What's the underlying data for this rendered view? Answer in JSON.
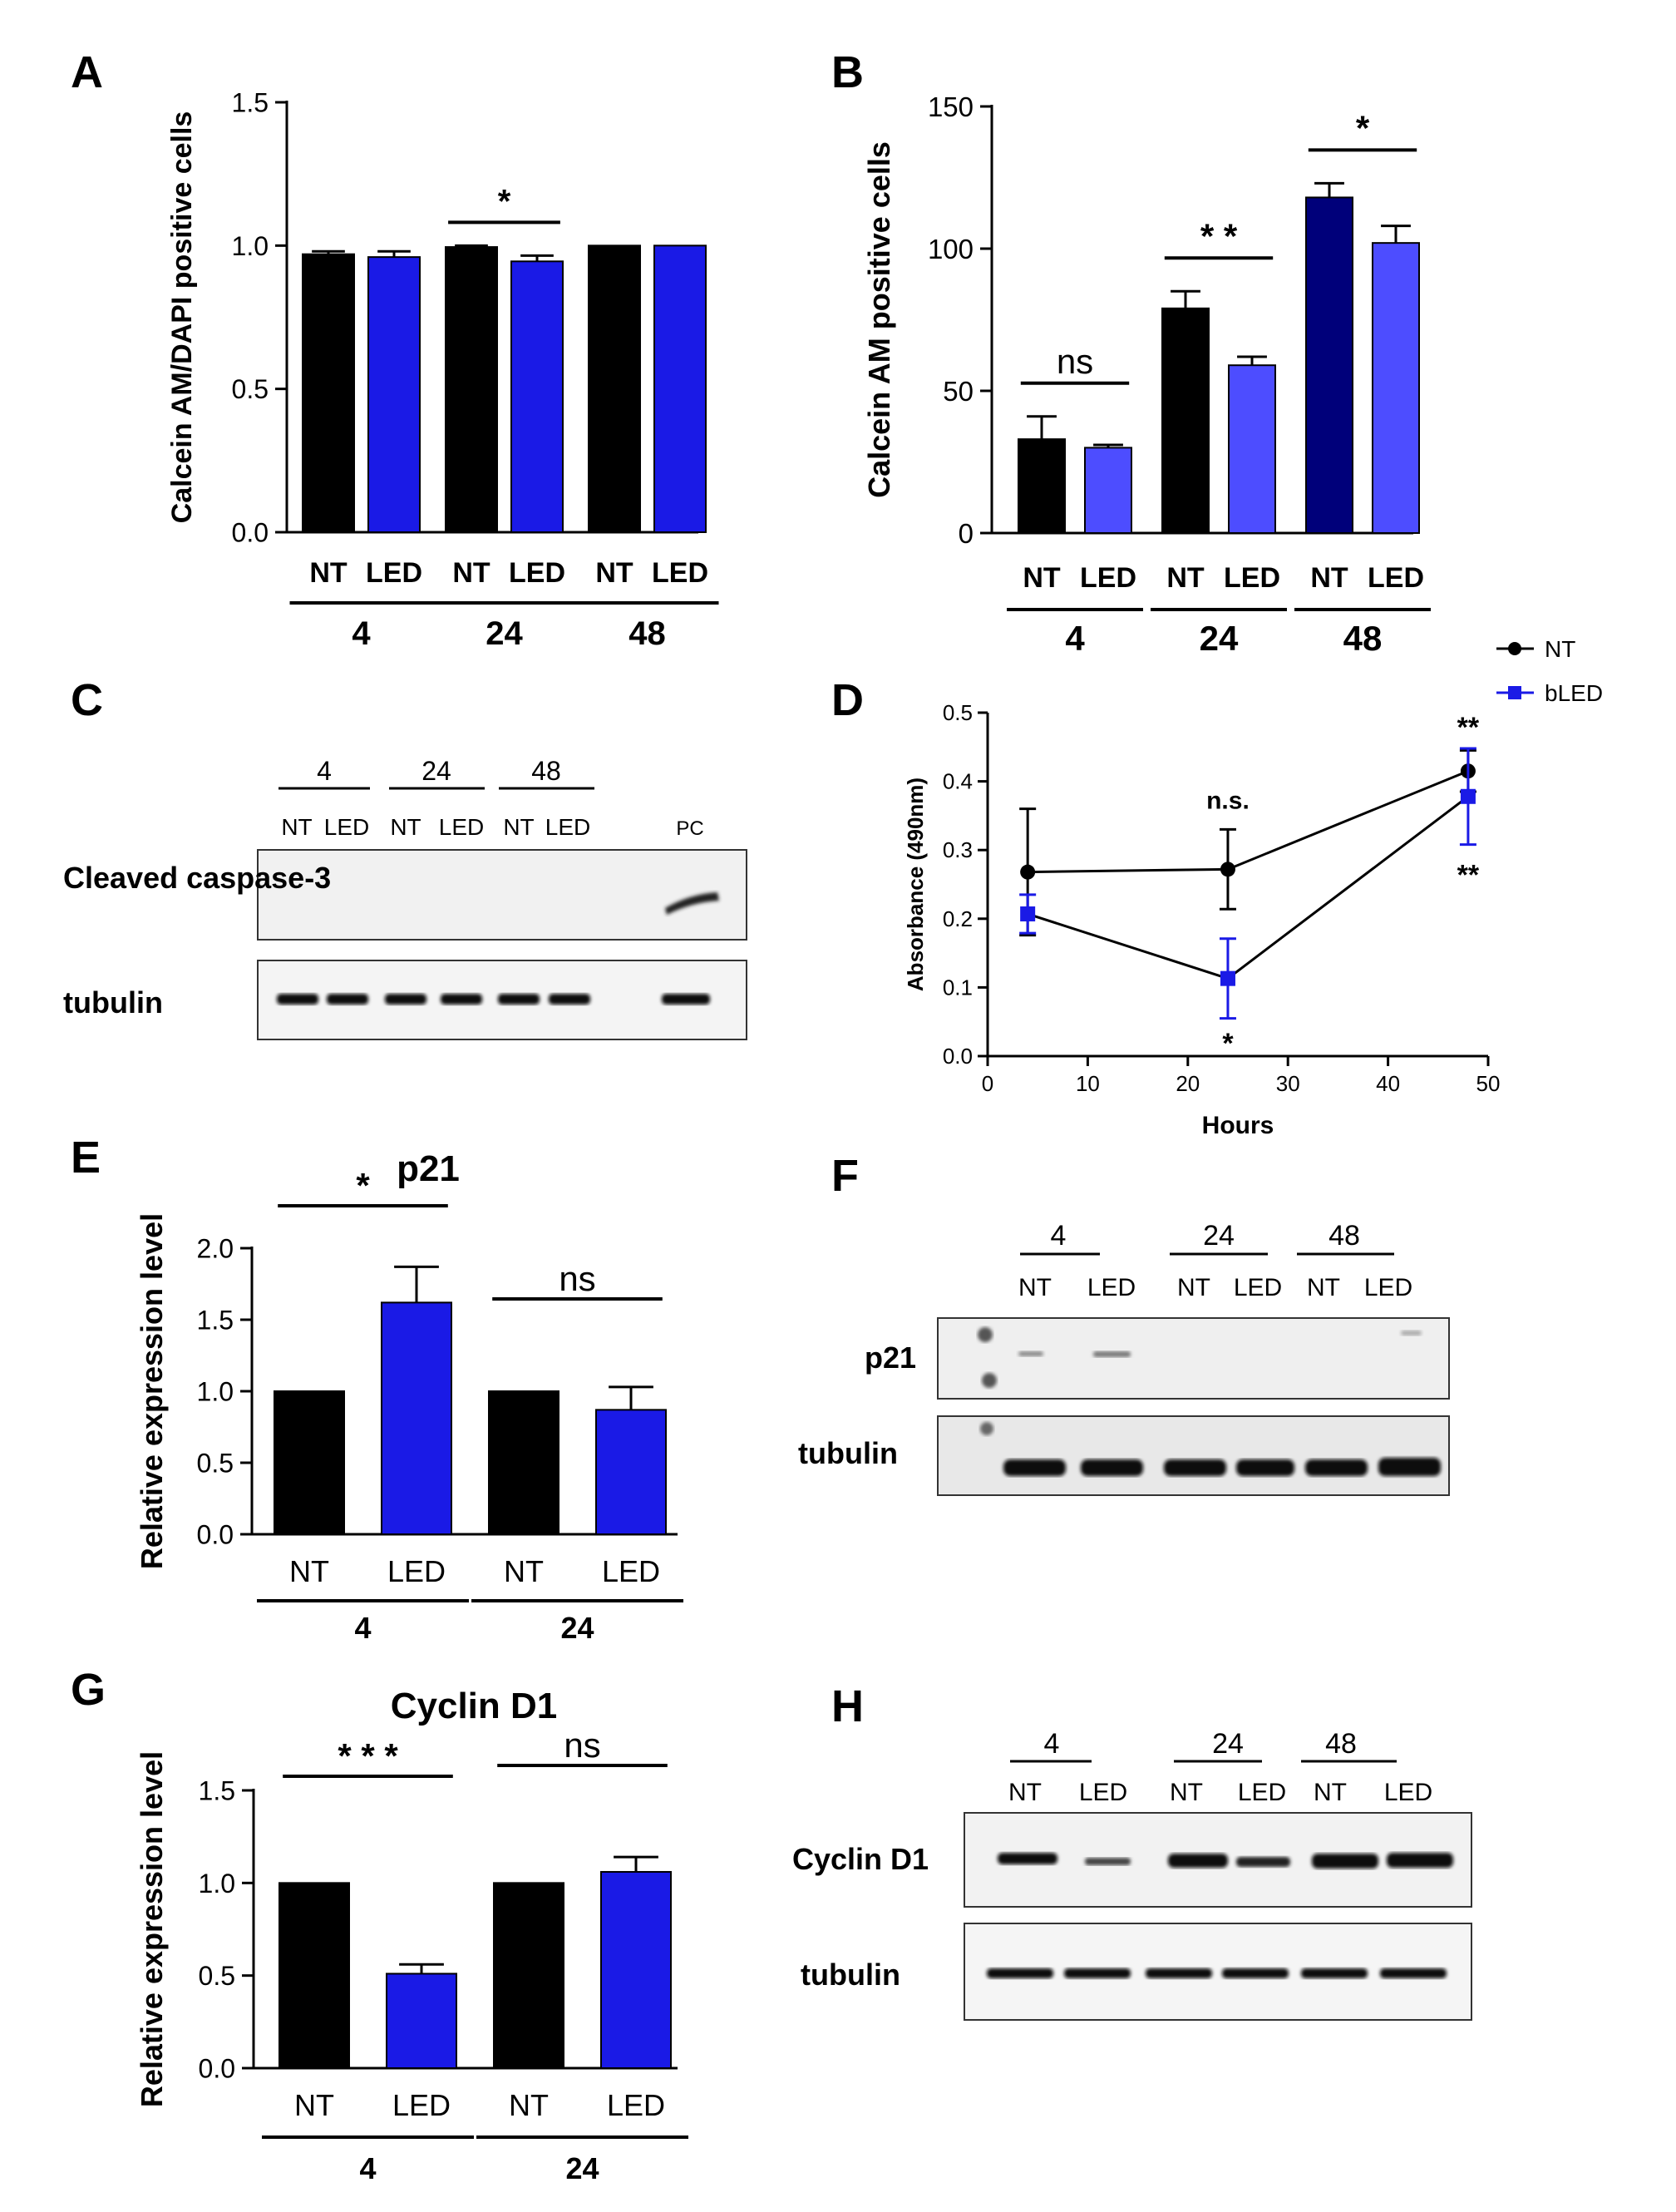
{
  "panel_letters": {
    "A": "A",
    "B": "B",
    "C": "C",
    "D": "D",
    "E": "E",
    "F": "F",
    "G": "G",
    "H": "H"
  },
  "colors": {
    "black": "#000000",
    "blue": "#1a1ae6",
    "light_blue": "#4d4dff",
    "navy": "#00007a",
    "nt_line": "#000000",
    "bled_line": "#1a1ae6"
  },
  "chart_data": [
    {
      "id": "A",
      "type": "bar",
      "title": "",
      "xlabel": "",
      "ylabel": "Calcein AM/DAPI positive cells",
      "ylim": [
        0,
        1.5
      ],
      "yticks": [
        "0.0",
        "0.5",
        "1.0",
        "1.5"
      ],
      "categories": [
        "NT",
        "LED",
        "NT",
        "LED",
        "NT",
        "LED"
      ],
      "values": [
        0.97,
        0.96,
        0.995,
        0.945,
        1.0,
        1.0
      ],
      "errors": [
        0.01,
        0.02,
        0.005,
        0.02,
        0.0,
        0.0
      ],
      "bar_colors": [
        "#000000",
        "#1a1ae6",
        "#000000",
        "#1a1ae6",
        "#000000",
        "#1a1ae6"
      ],
      "groups": [
        "4",
        "24",
        "48"
      ],
      "annotations": [
        {
          "pair": [
            2,
            3
          ],
          "text": "*"
        }
      ]
    },
    {
      "id": "B",
      "type": "bar",
      "title": "",
      "xlabel": "",
      "ylabel": "Calcein AM positive cells",
      "ylim": [
        0,
        150
      ],
      "yticks": [
        "0",
        "50",
        "100",
        "150"
      ],
      "categories": [
        "NT",
        "LED",
        "NT",
        "LED",
        "NT",
        "LED"
      ],
      "values": [
        33,
        30,
        79,
        59,
        118,
        102
      ],
      "errors": [
        8,
        1,
        6,
        3,
        5,
        6
      ],
      "bar_colors": [
        "#000000",
        "#4d4dff",
        "#000000",
        "#4d4dff",
        "#00007a",
        "#4d4dff"
      ],
      "groups": [
        "4",
        "24",
        "48"
      ],
      "annotations": [
        {
          "pair": [
            0,
            1
          ],
          "text": "ns"
        },
        {
          "pair": [
            2,
            3
          ],
          "text": "* *"
        },
        {
          "pair": [
            4,
            5
          ],
          "text": "*"
        }
      ]
    },
    {
      "id": "D",
      "type": "line",
      "title": "",
      "xlabel": "Hours",
      "ylabel": "Absorbance (490nm)",
      "xlim": [
        0,
        50
      ],
      "ylim": [
        0,
        0.5
      ],
      "xticks": [
        "0",
        "10",
        "20",
        "30",
        "40",
        "50"
      ],
      "yticks": [
        "0.0",
        "0.1",
        "0.2",
        "0.3",
        "0.4",
        "0.5"
      ],
      "series": [
        {
          "name": "NT",
          "x": [
            4,
            24,
            48
          ],
          "values": [
            0.268,
            0.272,
            0.415
          ],
          "errors": [
            0.092,
            0.058,
            0.03
          ],
          "color": "#000000",
          "marker": "circle"
        },
        {
          "name": "bLED",
          "x": [
            4,
            24,
            48
          ],
          "values": [
            0.207,
            0.113,
            0.378
          ],
          "errors": [
            0.028,
            0.058,
            0.07
          ],
          "color": "#1a1ae6",
          "marker": "square"
        }
      ],
      "annotations": [
        {
          "x": 24,
          "y": 0.36,
          "text": "n.s."
        },
        {
          "x": 24,
          "y": 0.005,
          "text": "*"
        },
        {
          "x": 48,
          "y": 0.465,
          "text": "**"
        },
        {
          "x": 48,
          "y": 0.25,
          "text": "**"
        }
      ],
      "legend": "top-right"
    },
    {
      "id": "E",
      "type": "bar",
      "title": "p21",
      "xlabel": "",
      "ylabel": "Relative expression level",
      "ylim": [
        0,
        2.0
      ],
      "yticks": [
        "0.0",
        "0.5",
        "1.0",
        "1.5",
        "2.0"
      ],
      "categories": [
        "NT",
        "LED",
        "NT",
        "LED"
      ],
      "values": [
        1.0,
        1.62,
        1.0,
        0.87
      ],
      "errors": [
        0.0,
        0.25,
        0.0,
        0.16
      ],
      "bar_colors": [
        "#000000",
        "#1a1ae6",
        "#000000",
        "#1a1ae6"
      ],
      "groups": [
        "4",
        "24"
      ],
      "annotations": [
        {
          "pair": [
            0,
            1
          ],
          "text": "*"
        },
        {
          "pair": [
            2,
            3
          ],
          "text": "ns"
        }
      ]
    },
    {
      "id": "G",
      "type": "bar",
      "title": "Cyclin D1",
      "xlabel": "",
      "ylabel": "Relative expression level",
      "ylim": [
        0,
        1.5
      ],
      "yticks": [
        "0.0",
        "0.5",
        "1.0",
        "1.5"
      ],
      "categories": [
        "NT",
        "LED",
        "NT",
        "LED"
      ],
      "values": [
        1.0,
        0.51,
        1.0,
        1.06
      ],
      "errors": [
        0.0,
        0.05,
        0.0,
        0.08
      ],
      "bar_colors": [
        "#000000",
        "#1a1ae6",
        "#000000",
        "#1a1ae6"
      ],
      "groups": [
        "4",
        "24"
      ],
      "annotations": [
        {
          "pair": [
            0,
            1
          ],
          "text": "* * *"
        },
        {
          "pair": [
            2,
            3
          ],
          "text": "ns"
        }
      ]
    }
  ],
  "blots": {
    "C": {
      "groups": [
        "4",
        "24",
        "48"
      ],
      "lanes": [
        "NT",
        "LED",
        "NT",
        "LED",
        "NT",
        "LED"
      ],
      "extra_lane": "PC",
      "rows": [
        "Cleaved caspase-3",
        "tubulin"
      ]
    },
    "F": {
      "groups": [
        "4",
        "24",
        "48"
      ],
      "lanes": [
        "NT",
        "LED",
        "NT",
        "LED",
        "NT",
        "LED"
      ],
      "rows": [
        "p21",
        "tubulin"
      ]
    },
    "H": {
      "groups": [
        "4",
        "24",
        "48"
      ],
      "lanes": [
        "NT",
        "LED",
        "NT",
        "LED",
        "NT",
        "LED"
      ],
      "rows": [
        "Cyclin D1",
        "tubulin"
      ]
    }
  }
}
